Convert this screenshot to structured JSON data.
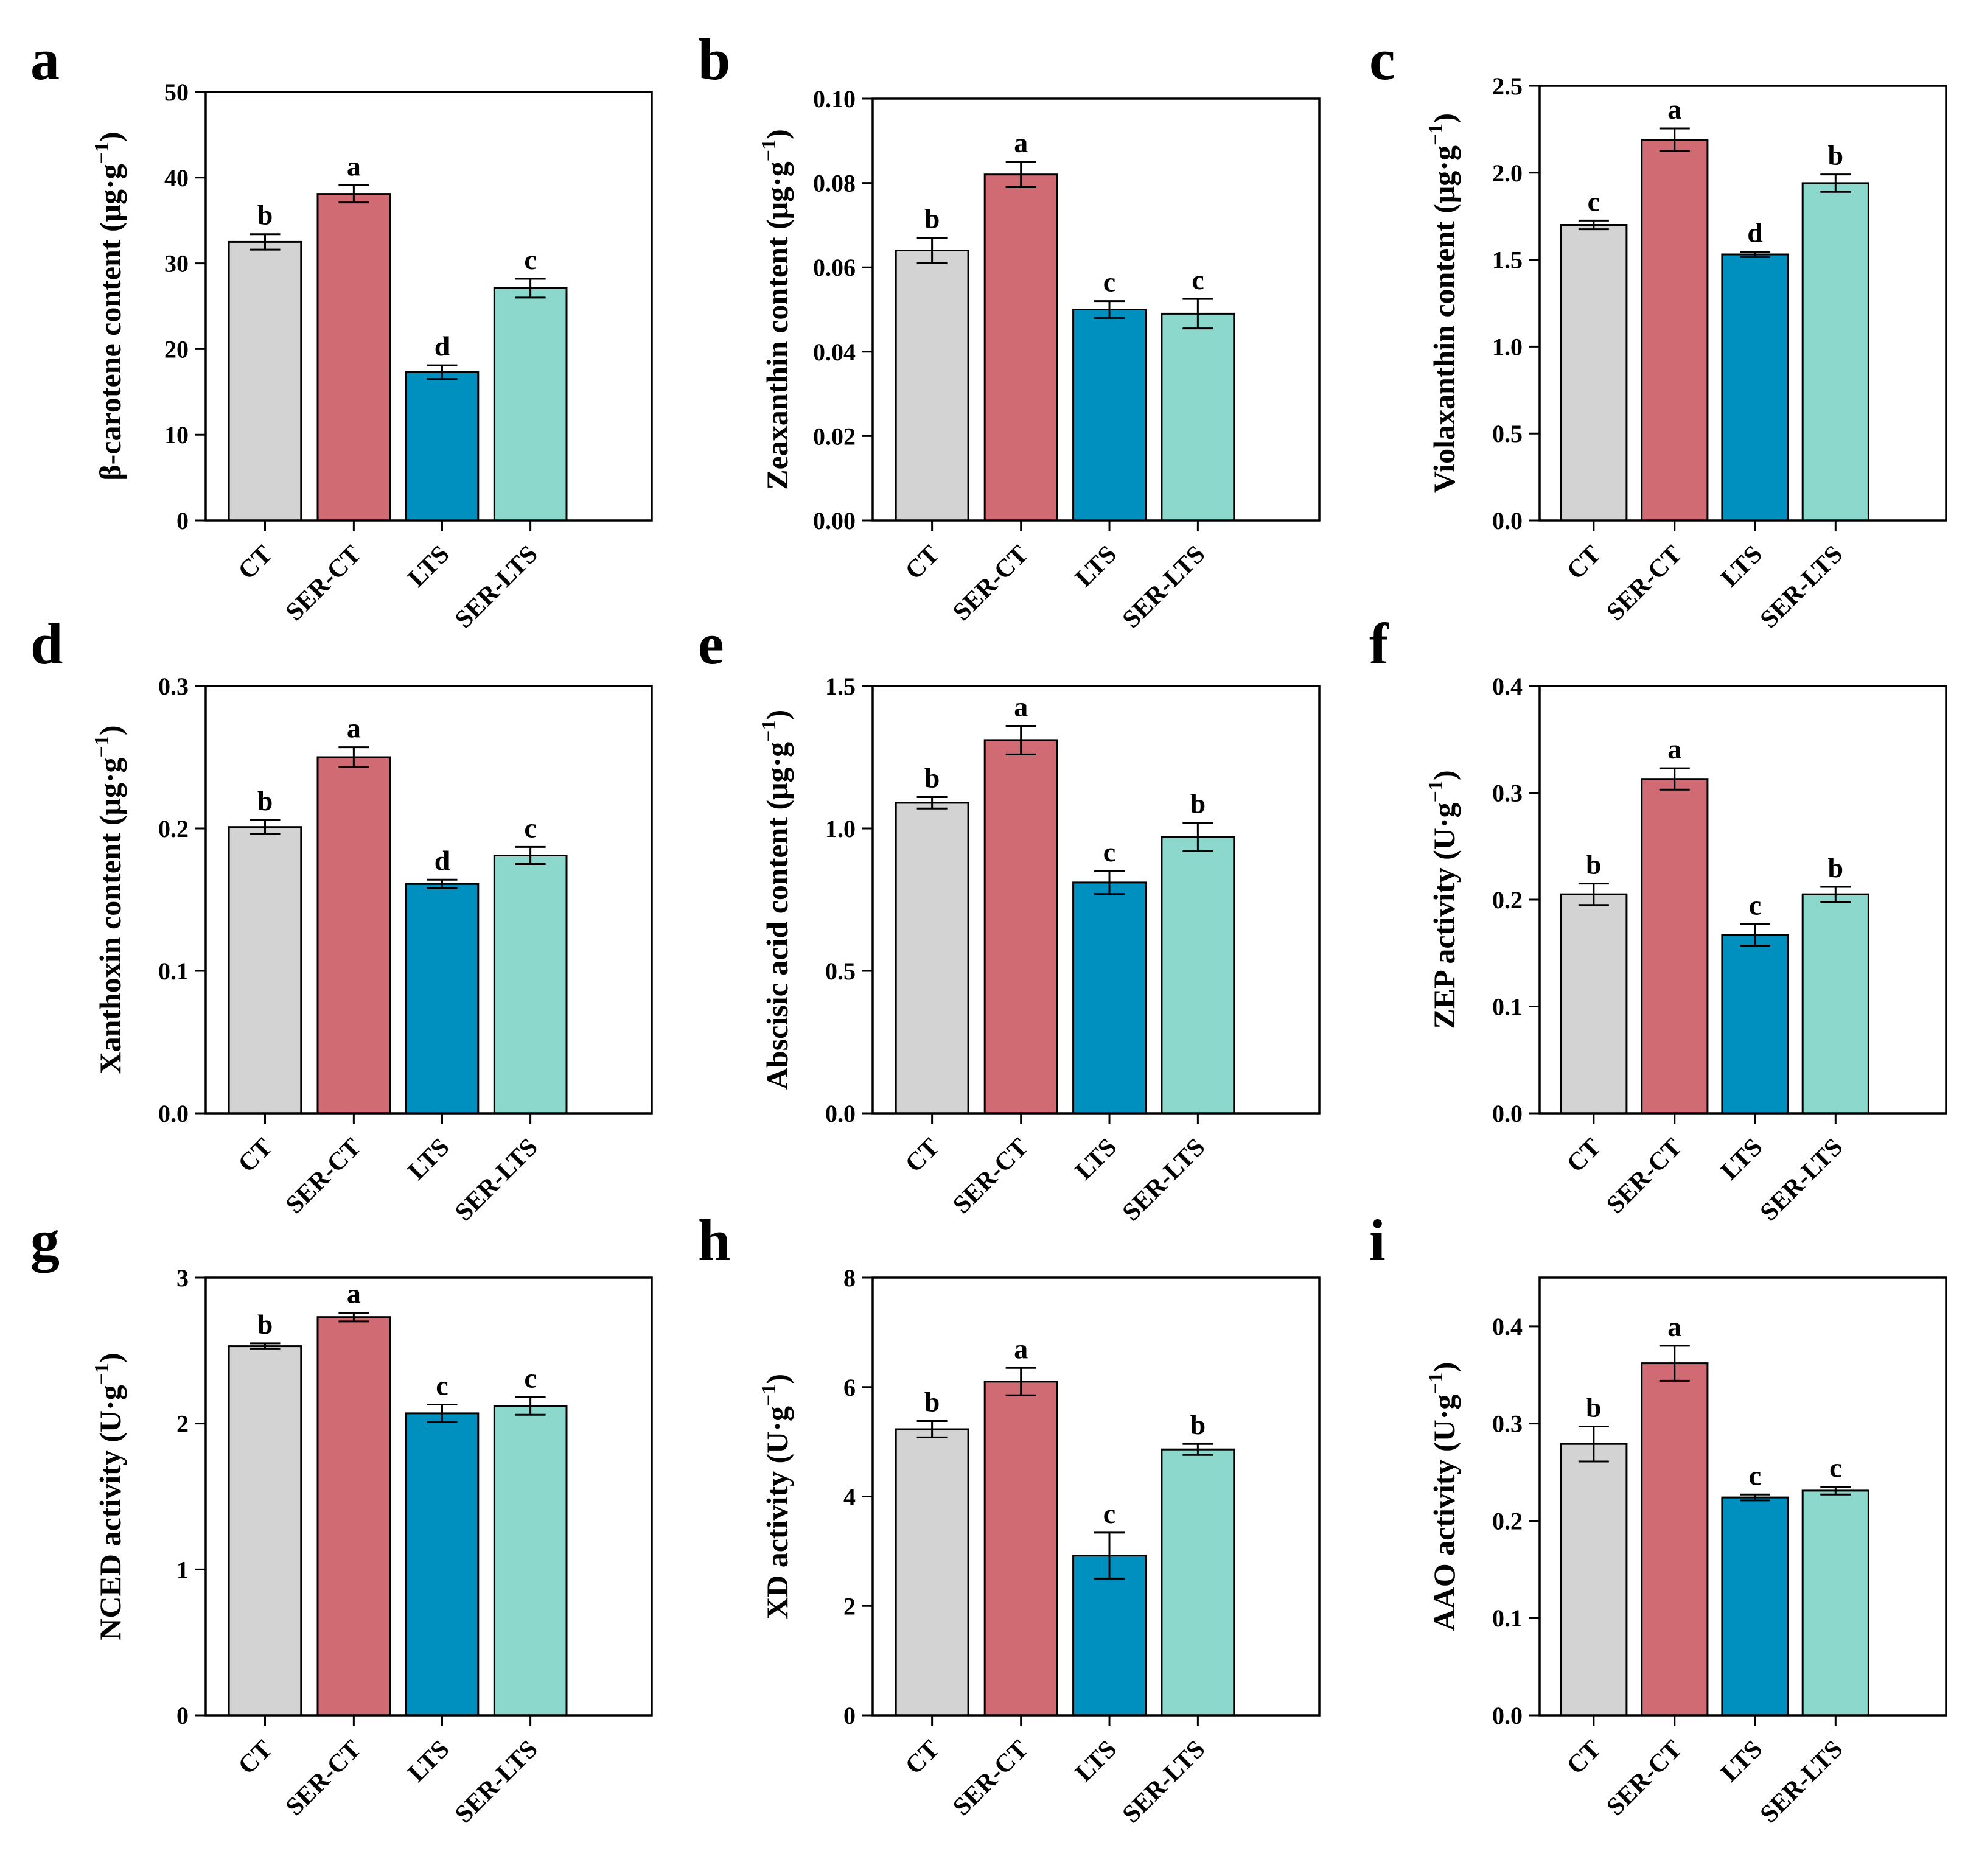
{
  "colors": {
    "CT": "#d3d3d3",
    "SER-CT": "#d06b74",
    "LTS": "#0090c0",
    "SER-LTS": "#8dd8cc",
    "stroke": "#000000"
  },
  "chart_data": [
    {
      "type": "bar",
      "panel": "a",
      "ylabel": "β-carotene content (μg·g",
      "ylabel_sup": "−1",
      "ylabel_close": ")",
      "categories": [
        "CT",
        "SER-CT",
        "LTS",
        "SER-LTS"
      ],
      "values": [
        32.5,
        38.1,
        17.3,
        27.1
      ],
      "errors": [
        0.9,
        1.0,
        0.8,
        1.1
      ],
      "letters": [
        "b",
        "a",
        "d",
        "c"
      ],
      "ylim": [
        0,
        50
      ],
      "yticks": [
        "0",
        "10",
        "20",
        "30",
        "40",
        "50"
      ]
    },
    {
      "type": "bar",
      "panel": "b",
      "ylabel": "Zeaxanthin content (μg·g",
      "ylabel_sup": "−1",
      "ylabel_close": ")",
      "categories": [
        "CT",
        "SER-CT",
        "LTS",
        "SER-LTS"
      ],
      "values": [
        0.064,
        0.082,
        0.05,
        0.049
      ],
      "errors": [
        0.003,
        0.003,
        0.002,
        0.0035
      ],
      "letters": [
        "b",
        "a",
        "c",
        "c"
      ],
      "ylim": [
        0,
        0.1
      ],
      "yticks": [
        "0.00",
        "0.02",
        "0.04",
        "0.06",
        "0.08",
        "0.10"
      ]
    },
    {
      "type": "bar",
      "panel": "c",
      "ylabel": "Violaxanthin content (μg·g",
      "ylabel_sup": "−1",
      "ylabel_close": ")",
      "categories": [
        "CT",
        "SER-CT",
        "LTS",
        "SER-LTS"
      ],
      "values": [
        1.7,
        2.19,
        1.53,
        1.94
      ],
      "errors": [
        0.025,
        0.065,
        0.015,
        0.05
      ],
      "letters": [
        "c",
        "a",
        "d",
        "b"
      ],
      "ylim": [
        0,
        2.5
      ],
      "yticks": [
        "0.0",
        "0.5",
        "1.0",
        "1.5",
        "2.0",
        "2.5"
      ]
    },
    {
      "type": "bar",
      "panel": "d",
      "ylabel": "Xanthoxin content (μg·g",
      "ylabel_sup": "−1",
      "ylabel_close": ")",
      "categories": [
        "CT",
        "SER-CT",
        "LTS",
        "SER-LTS"
      ],
      "values": [
        0.201,
        0.25,
        0.161,
        0.181
      ],
      "errors": [
        0.005,
        0.007,
        0.003,
        0.006
      ],
      "letters": [
        "b",
        "a",
        "d",
        "c"
      ],
      "ylim": [
        0,
        0.3
      ],
      "yticks": [
        "0.0",
        "0.1",
        "0.2",
        "0.3"
      ]
    },
    {
      "type": "bar",
      "panel": "e",
      "ylabel": "Abscisic acid content (μg·g",
      "ylabel_sup": "−1",
      "ylabel_close": ")",
      "categories": [
        "CT",
        "SER-CT",
        "LTS",
        "SER-LTS"
      ],
      "values": [
        1.09,
        1.31,
        0.81,
        0.97
      ],
      "errors": [
        0.02,
        0.05,
        0.04,
        0.05
      ],
      "letters": [
        "b",
        "a",
        "c",
        "b"
      ],
      "ylim": [
        0,
        1.5
      ],
      "yticks": [
        "0.0",
        "0.5",
        "1.0",
        "1.5"
      ]
    },
    {
      "type": "bar",
      "panel": "f",
      "ylabel": "ZEP activity (U·g",
      "ylabel_sup": "−1",
      "ylabel_close": ")",
      "categories": [
        "CT",
        "SER-CT",
        "LTS",
        "SER-LTS"
      ],
      "values": [
        0.205,
        0.313,
        0.167,
        0.205
      ],
      "errors": [
        0.01,
        0.01,
        0.01,
        0.007
      ],
      "letters": [
        "b",
        "a",
        "c",
        "b"
      ],
      "ylim": [
        0,
        0.4
      ],
      "yticks": [
        "0.0",
        "0.1",
        "0.2",
        "0.3",
        "0.4"
      ]
    },
    {
      "type": "bar",
      "panel": "g",
      "ylabel": "NCED activity (U·g",
      "ylabel_sup": "−1",
      "ylabel_close": ")",
      "categories": [
        "CT",
        "SER-CT",
        "LTS",
        "SER-LTS"
      ],
      "values": [
        2.53,
        2.73,
        2.07,
        2.12
      ],
      "errors": [
        0.02,
        0.03,
        0.06,
        0.06
      ],
      "letters": [
        "b",
        "a",
        "c",
        "c"
      ],
      "ylim": [
        0,
        3
      ],
      "yticks": [
        "0",
        "1",
        "2",
        "3"
      ]
    },
    {
      "type": "bar",
      "panel": "h",
      "ylabel": "XD activity (U·g",
      "ylabel_sup": "−1",
      "ylabel_close": ")",
      "categories": [
        "CT",
        "SER-CT",
        "LTS",
        "SER-LTS"
      ],
      "values": [
        5.23,
        6.1,
        2.92,
        4.86
      ],
      "errors": [
        0.15,
        0.25,
        0.42,
        0.1
      ],
      "letters": [
        "b",
        "a",
        "c",
        "b"
      ],
      "ylim": [
        0,
        8
      ],
      "yticks": [
        "0",
        "2",
        "4",
        "6",
        "8"
      ]
    },
    {
      "type": "bar",
      "panel": "i",
      "ylabel": "AAO activity (U·g",
      "ylabel_sup": "−1",
      "ylabel_close": ")",
      "categories": [
        "CT",
        "SER-CT",
        "LTS",
        "SER-LTS"
      ],
      "values": [
        0.279,
        0.362,
        0.224,
        0.231
      ],
      "errors": [
        0.018,
        0.018,
        0.003,
        0.004
      ],
      "letters": [
        "b",
        "a",
        "c",
        "c"
      ],
      "ylim": [
        0,
        0.45
      ],
      "yticks": [
        "0.0",
        "0.1",
        "0.2",
        "0.3",
        "0.4"
      ]
    }
  ]
}
